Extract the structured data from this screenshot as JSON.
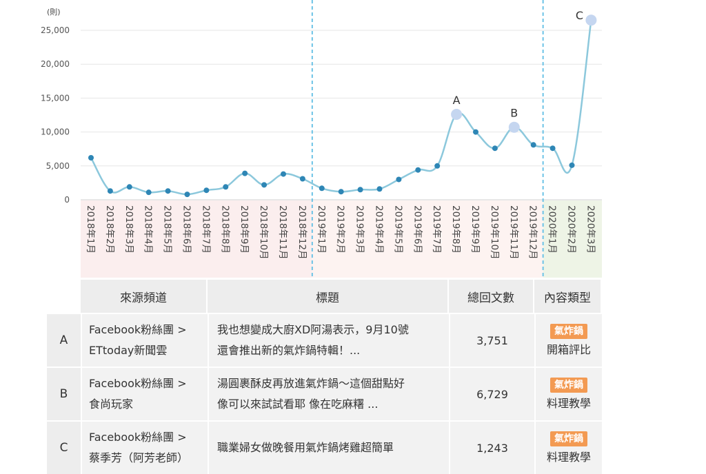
{
  "chart_data": {
    "type": "line",
    "unit_label": "(則)",
    "ylim": [
      0,
      25000
    ],
    "y_ticks": [
      "0",
      "5,000",
      "10,000",
      "15,000",
      "20,000",
      "25,000"
    ],
    "categories": [
      "2018年1月",
      "2018年2月",
      "2018年3月",
      "2018年4月",
      "2018年5月",
      "2018年6月",
      "2018年7月",
      "2018年8月",
      "2018年9月",
      "2018年10月",
      "2018年11月",
      "2018年12月",
      "2019年1月",
      "2019年2月",
      "2019年3月",
      "2019年4月",
      "2019年5月",
      "2019年6月",
      "2019年7月",
      "2019年8月",
      "2019年9月",
      "2019年10月",
      "2019年11月",
      "2019年12月",
      "2020年1月",
      "2020年2月",
      "2020年3月"
    ],
    "values": [
      6200,
      1300,
      1900,
      1100,
      1300,
      800,
      1400,
      1900,
      3900,
      2200,
      3800,
      3100,
      1700,
      1200,
      1500,
      1600,
      3000,
      4400,
      5000,
      12600,
      10000,
      7600,
      10700,
      8100,
      7600,
      5100,
      26500
    ],
    "highlights": [
      {
        "label": "A",
        "index": 19
      },
      {
        "label": "B",
        "index": 22
      },
      {
        "label": "C",
        "index": 26
      }
    ],
    "grid": true,
    "colors": {
      "line": "#8cc8dc",
      "point": "#2e86b5",
      "highlight": "#c5d6f0",
      "divider": "#6cc3e6",
      "band_2018": "#fbeeee",
      "band_2019": "#fdf3f1",
      "band_2020": "#eef4e6"
    }
  },
  "table": {
    "headers": [
      "來源頻道",
      "標題",
      "總回文數",
      "內容類型"
    ],
    "rows": [
      {
        "letter": "A",
        "channel_1": "Facebook粉絲團 >",
        "channel_2": "ETtoday新聞雲",
        "title_1": "我也想變成大廚XD阿湯表示，9月10號",
        "title_2": "還會推出新的氣炸鍋特輯！...",
        "count": "3,751",
        "badge": "氣炸鍋",
        "type": "開箱評比"
      },
      {
        "letter": "B",
        "channel_1": "Facebook粉絲團 >",
        "channel_2": "食尚玩家",
        "title_1": "湯圓裹酥皮再放進氣炸鍋～這個甜點好",
        "title_2": "像可以來試試看耶 像在吃麻糬 ...",
        "count": "6,729",
        "badge": "氣炸鍋",
        "type": "料理教學"
      },
      {
        "letter": "C",
        "channel_1": "Facebook粉絲團 >",
        "channel_2": "蔡季芳（阿芳老師）",
        "title_1": "職業婦女做晚餐用氣炸鍋烤雞超簡單",
        "title_2": "",
        "count": "1,243",
        "badge": "氣炸鍋",
        "type": "料理教學"
      }
    ]
  }
}
